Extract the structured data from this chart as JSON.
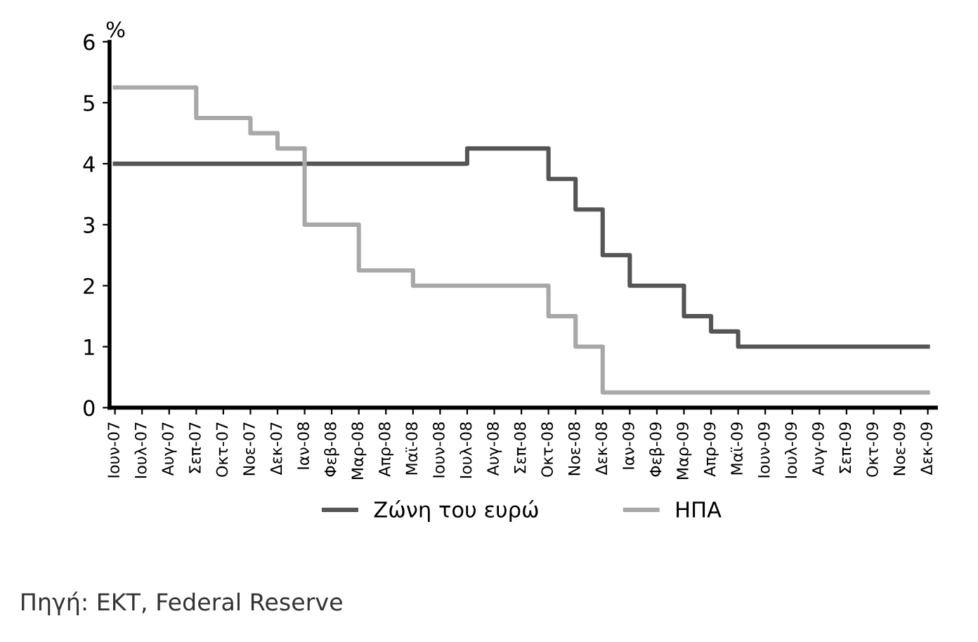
{
  "chart_data": {
    "type": "step",
    "ylabel": "%",
    "categories": [
      "Ιουν-07",
      "Ιουλ-07",
      "Αυγ-07",
      "Σεπ-07",
      "Οκτ-07",
      "Νοε-07",
      "Δεκ-07",
      "Ιαν-08",
      "Φεβ-08",
      "Μαρ-08",
      "Απρ-08",
      "Μαϊ-08",
      "Ιουν-08",
      "Ιουλ-08",
      "Αυγ-08",
      "Σεπ-08",
      "Οκτ-08",
      "Νοε-08",
      "Δεκ-08",
      "Ιαν-09",
      "Φεβ-09",
      "Μαρ-09",
      "Απρ-09",
      "Μαϊ-09",
      "Ιουν-09",
      "Ιουλ-09",
      "Αυγ-09",
      "Σεπ-09",
      "Οκτ-09",
      "Νοε-09",
      "Δεκ-09"
    ],
    "series": [
      {
        "name": "Ζώνη του ευρώ",
        "color": "#555555",
        "values": [
          4.0,
          4.0,
          4.0,
          4.0,
          4.0,
          4.0,
          4.0,
          4.0,
          4.0,
          4.0,
          4.0,
          4.0,
          4.0,
          4.25,
          4.25,
          4.25,
          3.75,
          3.25,
          2.5,
          2.0,
          2.0,
          1.5,
          1.25,
          1.0,
          1.0,
          1.0,
          1.0,
          1.0,
          1.0,
          1.0,
          1.0
        ]
      },
      {
        "name": "ΗΠΑ",
        "color": "#a8a8a8",
        "values": [
          5.25,
          5.25,
          5.25,
          4.75,
          4.75,
          4.5,
          4.25,
          3.0,
          3.0,
          2.25,
          2.25,
          2.0,
          2.0,
          2.0,
          2.0,
          2.0,
          1.5,
          1.0,
          0.25,
          0.25,
          0.25,
          0.25,
          0.25,
          0.25,
          0.25,
          0.25,
          0.25,
          0.25,
          0.25,
          0.25,
          0.25
        ]
      }
    ],
    "ylim": [
      0,
      6
    ],
    "yticks": [
      0,
      1,
      2,
      3,
      4,
      5,
      6
    ],
    "legend": "bottom",
    "grid": false,
    "marker": "none",
    "line_style": "solid",
    "annotations": [
      "Πηγή: ΕΚΤ, Federal Reserve"
    ]
  }
}
